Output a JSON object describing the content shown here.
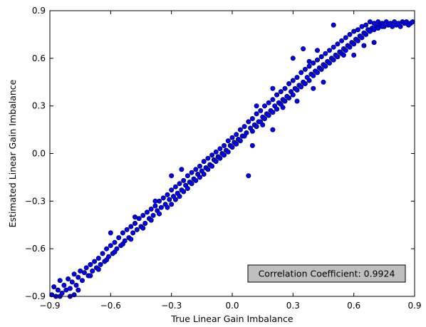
{
  "chart_data": {
    "type": "scatter",
    "title": "",
    "xlabel": "True Linear Gain Imbalance",
    "ylabel": "Estimated Linear Gain Imbalance",
    "xlim": [
      -0.9,
      0.9
    ],
    "ylim": [
      -0.9,
      0.9
    ],
    "xticks": [
      "−0.9",
      "−0.6",
      "−0.3",
      "0.0",
      "0.3",
      "0.6",
      "0.9"
    ],
    "yticks": [
      "−0.9",
      "−0.6",
      "−0.3",
      "0.0",
      "0.3",
      "0.6",
      "0.9"
    ],
    "grid": false,
    "annotation": "Correlation Coefficient: 0.9924",
    "annotation_position": "bottom-right",
    "marker_color": "#0000ff",
    "marker_edge_color": "#000000",
    "series": [
      {
        "points": [
          [
            -0.89,
            -0.89
          ],
          [
            -0.88,
            -0.84
          ],
          [
            -0.87,
            -0.9
          ],
          [
            -0.86,
            -0.86
          ],
          [
            -0.85,
            -0.8
          ],
          [
            -0.84,
            -0.88
          ],
          [
            -0.83,
            -0.83
          ],
          [
            -0.82,
            -0.86
          ],
          [
            -0.81,
            -0.79
          ],
          [
            -0.8,
            -0.85
          ],
          [
            -0.79,
            -0.81
          ],
          [
            -0.78,
            -0.76
          ],
          [
            -0.77,
            -0.83
          ],
          [
            -0.76,
            -0.78
          ],
          [
            -0.75,
            -0.74
          ],
          [
            -0.74,
            -0.8
          ],
          [
            -0.73,
            -0.75
          ],
          [
            -0.72,
            -0.72
          ],
          [
            -0.71,
            -0.77
          ],
          [
            -0.7,
            -0.7
          ],
          [
            -0.69,
            -0.74
          ],
          [
            -0.68,
            -0.68
          ],
          [
            -0.67,
            -0.72
          ],
          [
            -0.66,
            -0.66
          ],
          [
            -0.65,
            -0.7
          ],
          [
            -0.64,
            -0.63
          ],
          [
            -0.63,
            -0.68
          ],
          [
            -0.62,
            -0.6
          ],
          [
            -0.61,
            -0.65
          ],
          [
            -0.6,
            -0.58
          ],
          [
            -0.59,
            -0.63
          ],
          [
            -0.58,
            -0.56
          ],
          [
            -0.57,
            -0.6
          ],
          [
            -0.56,
            -0.53
          ],
          [
            -0.55,
            -0.58
          ],
          [
            -0.54,
            -0.5
          ],
          [
            -0.53,
            -0.55
          ],
          [
            -0.52,
            -0.48
          ],
          [
            -0.51,
            -0.53
          ],
          [
            -0.5,
            -0.46
          ],
          [
            -0.49,
            -0.5
          ],
          [
            -0.48,
            -0.44
          ],
          [
            -0.47,
            -0.48
          ],
          [
            -0.46,
            -0.41
          ],
          [
            -0.45,
            -0.46
          ],
          [
            -0.44,
            -0.39
          ],
          [
            -0.43,
            -0.44
          ],
          [
            -0.42,
            -0.37
          ],
          [
            -0.41,
            -0.41
          ],
          [
            -0.4,
            -0.35
          ],
          [
            -0.39,
            -0.39
          ],
          [
            -0.38,
            -0.33
          ],
          [
            -0.37,
            -0.36
          ],
          [
            -0.36,
            -0.3
          ],
          [
            -0.35,
            -0.34
          ],
          [
            -0.34,
            -0.28
          ],
          [
            -0.33,
            -0.32
          ],
          [
            -0.32,
            -0.26
          ],
          [
            -0.31,
            -0.29
          ],
          [
            -0.3,
            -0.23
          ],
          [
            -0.29,
            -0.27
          ],
          [
            -0.28,
            -0.21
          ],
          [
            -0.27,
            -0.25
          ],
          [
            -0.26,
            -0.19
          ],
          [
            -0.25,
            -0.23
          ],
          [
            -0.24,
            -0.17
          ],
          [
            -0.23,
            -0.2
          ],
          [
            -0.22,
            -0.14
          ],
          [
            -0.21,
            -0.18
          ],
          [
            -0.2,
            -0.12
          ],
          [
            -0.19,
            -0.16
          ],
          [
            -0.18,
            -0.1
          ],
          [
            -0.17,
            -0.13
          ],
          [
            -0.16,
            -0.08
          ],
          [
            -0.15,
            -0.11
          ],
          [
            -0.14,
            -0.05
          ],
          [
            -0.13,
            -0.09
          ],
          [
            -0.12,
            -0.03
          ],
          [
            -0.11,
            -0.07
          ],
          [
            -0.1,
            -0.01
          ],
          [
            -0.09,
            -0.04
          ],
          [
            -0.08,
            0.01
          ],
          [
            -0.07,
            -0.02
          ],
          [
            -0.06,
            0.03
          ],
          [
            -0.05,
            0.0
          ],
          [
            -0.04,
            0.05
          ],
          [
            -0.03,
            0.02
          ],
          [
            -0.02,
            0.08
          ],
          [
            -0.01,
            0.05
          ],
          [
            0.0,
            0.1
          ],
          [
            0.01,
            0.07
          ],
          [
            0.02,
            0.12
          ],
          [
            0.03,
            0.09
          ],
          [
            0.04,
            0.15
          ],
          [
            0.05,
            0.11
          ],
          [
            0.06,
            0.17
          ],
          [
            0.07,
            0.13
          ],
          [
            0.08,
            0.2
          ],
          [
            0.09,
            0.16
          ],
          [
            0.1,
            0.22
          ],
          [
            0.11,
            0.18
          ],
          [
            0.12,
            0.25
          ],
          [
            0.13,
            0.2
          ],
          [
            0.14,
            0.27
          ],
          [
            0.15,
            0.23
          ],
          [
            0.16,
            0.3
          ],
          [
            0.17,
            0.25
          ],
          [
            0.18,
            0.32
          ],
          [
            0.19,
            0.27
          ],
          [
            0.2,
            0.34
          ],
          [
            0.21,
            0.3
          ],
          [
            0.22,
            0.37
          ],
          [
            0.23,
            0.32
          ],
          [
            0.24,
            0.39
          ],
          [
            0.25,
            0.34
          ],
          [
            0.26,
            0.41
          ],
          [
            0.27,
            0.36
          ],
          [
            0.28,
            0.44
          ],
          [
            0.29,
            0.39
          ],
          [
            0.3,
            0.46
          ],
          [
            0.31,
            0.41
          ],
          [
            0.32,
            0.48
          ],
          [
            0.33,
            0.43
          ],
          [
            0.34,
            0.51
          ],
          [
            0.35,
            0.45
          ],
          [
            0.36,
            0.53
          ],
          [
            0.37,
            0.48
          ],
          [
            0.38,
            0.55
          ],
          [
            0.39,
            0.5
          ],
          [
            0.4,
            0.57
          ],
          [
            0.41,
            0.52
          ],
          [
            0.42,
            0.59
          ],
          [
            0.43,
            0.54
          ],
          [
            0.44,
            0.61
          ],
          [
            0.45,
            0.56
          ],
          [
            0.46,
            0.63
          ],
          [
            0.47,
            0.58
          ],
          [
            0.48,
            0.65
          ],
          [
            0.49,
            0.6
          ],
          [
            0.5,
            0.67
          ],
          [
            0.51,
            0.62
          ],
          [
            0.52,
            0.69
          ],
          [
            0.53,
            0.64
          ],
          [
            0.54,
            0.71
          ],
          [
            0.55,
            0.66
          ],
          [
            0.56,
            0.73
          ],
          [
            0.57,
            0.68
          ],
          [
            0.58,
            0.75
          ],
          [
            0.59,
            0.7
          ],
          [
            0.6,
            0.77
          ],
          [
            0.61,
            0.72
          ],
          [
            0.62,
            0.78
          ],
          [
            0.63,
            0.74
          ],
          [
            0.64,
            0.8
          ],
          [
            0.65,
            0.76
          ],
          [
            0.66,
            0.81
          ],
          [
            0.67,
            0.78
          ],
          [
            0.68,
            0.83
          ],
          [
            0.69,
            0.79
          ],
          [
            0.7,
            0.82
          ],
          [
            0.71,
            0.8
          ],
          [
            0.72,
            0.83
          ],
          [
            0.73,
            0.81
          ],
          [
            0.74,
            0.82
          ],
          [
            0.75,
            0.8
          ],
          [
            0.76,
            0.83
          ],
          [
            0.77,
            0.81
          ],
          [
            0.78,
            0.82
          ],
          [
            0.79,
            0.8
          ],
          [
            0.8,
            0.83
          ],
          [
            0.81,
            0.81
          ],
          [
            0.82,
            0.82
          ],
          [
            0.83,
            0.8
          ],
          [
            0.84,
            0.83
          ],
          [
            0.85,
            0.82
          ],
          [
            0.86,
            0.83
          ],
          [
            0.87,
            0.81
          ],
          [
            0.88,
            0.82
          ],
          [
            0.89,
            0.83
          ],
          [
            -0.85,
            -0.9
          ],
          [
            -0.8,
            -0.9
          ],
          [
            -0.78,
            -0.89
          ],
          [
            -0.76,
            -0.86
          ],
          [
            -0.7,
            -0.77
          ],
          [
            -0.66,
            -0.73
          ],
          [
            -0.62,
            -0.67
          ],
          [
            -0.58,
            -0.62
          ],
          [
            -0.54,
            -0.57
          ],
          [
            -0.6,
            -0.5
          ],
          [
            -0.5,
            -0.54
          ],
          [
            -0.48,
            -0.4
          ],
          [
            -0.44,
            -0.47
          ],
          [
            -0.4,
            -0.42
          ],
          [
            -0.38,
            -0.3
          ],
          [
            -0.36,
            -0.38
          ],
          [
            -0.32,
            -0.34
          ],
          [
            -0.3,
            -0.32
          ],
          [
            -0.28,
            -0.29
          ],
          [
            -0.26,
            -0.27
          ],
          [
            -0.24,
            -0.24
          ],
          [
            -0.22,
            -0.22
          ],
          [
            -0.2,
            -0.19
          ],
          [
            -0.18,
            -0.17
          ],
          [
            -0.16,
            -0.15
          ],
          [
            -0.14,
            -0.13
          ],
          [
            -0.12,
            -0.1
          ],
          [
            -0.1,
            -0.08
          ],
          [
            -0.3,
            -0.14
          ],
          [
            -0.25,
            -0.1
          ],
          [
            -0.08,
            -0.05
          ],
          [
            -0.06,
            -0.03
          ],
          [
            -0.04,
            -0.01
          ],
          [
            -0.02,
            0.01
          ],
          [
            0.0,
            0.04
          ],
          [
            0.02,
            0.06
          ],
          [
            0.04,
            0.08
          ],
          [
            0.06,
            0.11
          ],
          [
            0.08,
            -0.14
          ],
          [
            0.1,
            0.14
          ],
          [
            0.12,
            0.17
          ],
          [
            0.14,
            0.2
          ],
          [
            0.16,
            0.22
          ],
          [
            0.18,
            0.24
          ],
          [
            0.2,
            0.26
          ],
          [
            0.22,
            0.28
          ],
          [
            0.24,
            0.31
          ],
          [
            0.26,
            0.33
          ],
          [
            0.28,
            0.35
          ],
          [
            0.3,
            0.37
          ],
          [
            0.32,
            0.4
          ],
          [
            0.34,
            0.42
          ],
          [
            0.36,
            0.44
          ],
          [
            0.38,
            0.46
          ],
          [
            0.4,
            0.49
          ],
          [
            0.42,
            0.51
          ],
          [
            0.44,
            0.53
          ],
          [
            0.46,
            0.55
          ],
          [
            0.48,
            0.57
          ],
          [
            0.5,
            0.59
          ],
          [
            0.52,
            0.61
          ],
          [
            0.54,
            0.63
          ],
          [
            0.56,
            0.65
          ],
          [
            0.58,
            0.67
          ],
          [
            0.6,
            0.69
          ],
          [
            0.62,
            0.71
          ],
          [
            0.64,
            0.73
          ],
          [
            0.66,
            0.75
          ],
          [
            0.68,
            0.77
          ],
          [
            0.7,
            0.78
          ],
          [
            0.72,
            0.79
          ],
          [
            0.74,
            0.8
          ],
          [
            0.2,
            0.41
          ],
          [
            0.25,
            0.29
          ],
          [
            0.35,
            0.66
          ],
          [
            0.42,
            0.65
          ],
          [
            0.5,
            0.81
          ],
          [
            0.12,
            0.3
          ],
          [
            0.3,
            0.6
          ],
          [
            0.4,
            0.41
          ],
          [
            0.2,
            0.15
          ],
          [
            0.45,
            0.45
          ],
          [
            0.55,
            0.62
          ],
          [
            0.1,
            0.05
          ],
          [
            0.15,
            0.18
          ],
          [
            0.32,
            0.33
          ],
          [
            0.38,
            0.58
          ],
          [
            0.6,
            0.62
          ],
          [
            0.65,
            0.68
          ],
          [
            0.7,
            0.7
          ]
        ]
      }
    ]
  }
}
